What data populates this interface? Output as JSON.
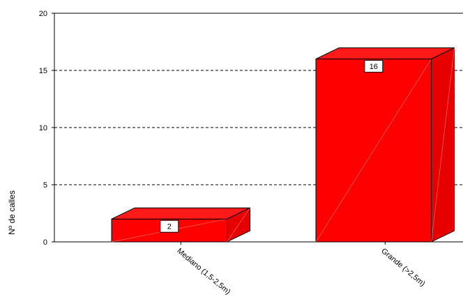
{
  "chart_data": {
    "type": "bar",
    "style": "3d-column",
    "categories": [
      "Mediano (1,5-2,5m)",
      "Grande (>2,5m)"
    ],
    "values": [
      2,
      16
    ],
    "data_labels": [
      "2",
      "16"
    ],
    "title": "",
    "xlabel": "",
    "ylabel": "Nº de calles",
    "ylim": [
      0,
      20
    ],
    "yticks": [
      0,
      5,
      10,
      15,
      20
    ],
    "ytick_labels": [
      "0",
      "5",
      "10",
      "15",
      "20"
    ],
    "grid": "horizontal-dashed",
    "legend": "none",
    "colors": {
      "bar_front": "#ff0000",
      "bar_top": "#ff1a1a",
      "bar_side": "#e60000",
      "gridline": "#000000",
      "label_box": "#ffffff"
    }
  }
}
